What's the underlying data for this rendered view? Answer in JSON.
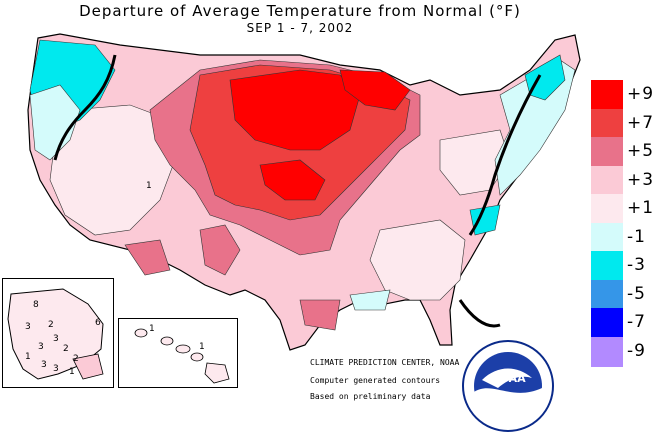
{
  "title": "Departure of Average Temperature from Normal (°F)",
  "subtitle": "SEP 1 - 7, 2002",
  "legend": {
    "items": [
      {
        "label": "+9",
        "color": "#ff0000"
      },
      {
        "label": "+7",
        "color": "#ee4040"
      },
      {
        "label": "+5",
        "color": "#e8728a"
      },
      {
        "label": "+3",
        "color": "#fbcad6"
      },
      {
        "label": "+1",
        "color": "#fde9ee"
      },
      {
        "label": "-1",
        "color": "#d4fbfb"
      },
      {
        "label": "-3",
        "color": "#00e9ee"
      },
      {
        "label": "-5",
        "color": "#3596e8"
      },
      {
        "label": "-7",
        "color": "#0000ff"
      },
      {
        "label": "-9",
        "color": "#b28aff"
      }
    ]
  },
  "credits": {
    "center": "CLIMATE PREDICTION CENTER, NOAA",
    "line1": "Computer generated contours",
    "line2": "Based on preliminary data"
  },
  "noaa_logo": {
    "text": "NOAA"
  },
  "map_labels": {
    "alaska": [
      "8",
      "3",
      "2",
      "3",
      "3",
      "6",
      "2",
      "1",
      "3",
      "2",
      "1",
      "3"
    ],
    "hawaii": [
      "1",
      "1"
    ],
    "conus": [
      "1"
    ]
  }
}
